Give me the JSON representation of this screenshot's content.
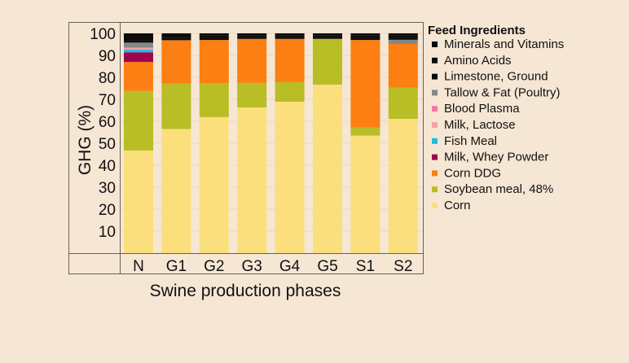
{
  "chart_data": {
    "type": "bar",
    "stacked": true,
    "title": "",
    "xlabel": "Swine production phases",
    "ylabel": "GHG (%)",
    "ylim": [
      0,
      100
    ],
    "yticks": [
      10,
      20,
      30,
      40,
      50,
      60,
      70,
      80,
      90,
      100
    ],
    "grid": true,
    "legend_title": "Feed Ingredients",
    "legend_position": "right",
    "categories": [
      "N",
      "G1",
      "G2",
      "G3",
      "G4",
      "G5",
      "S1",
      "S2"
    ],
    "series": [
      {
        "name": "Corn",
        "color": "#fbdf7c",
        "values": [
          46.7,
          56.5,
          61.9,
          66.3,
          68.9,
          76.7,
          53.5,
          61.1
        ]
      },
      {
        "name": "Soybean meal, 48%",
        "color": "#b9bd26",
        "values": [
          27.1,
          20.6,
          15.5,
          11.2,
          8.9,
          20.8,
          3.7,
          14.2
        ]
      },
      {
        "name": "Corn DDG",
        "color": "#fb7f12",
        "values": [
          13.2,
          19.8,
          19.6,
          20.0,
          19.7,
          0,
          39.8,
          19.9
        ]
      },
      {
        "name": "Milk, Whey Powder",
        "color": "#a0044f",
        "values": [
          4.4,
          0,
          0,
          0,
          0,
          0,
          0,
          0
        ]
      },
      {
        "name": "Fish Meal",
        "color": "#1ebfd8",
        "values": [
          1.2,
          0,
          0,
          0,
          0,
          0,
          0,
          0
        ]
      },
      {
        "name": "Milk, Lactose",
        "color": "#f7a3a8",
        "values": [
          0.6,
          0,
          0,
          0,
          0,
          0,
          0,
          0
        ]
      },
      {
        "name": "Blood Plasma",
        "color": "#ee79a5",
        "values": [
          0.4,
          0,
          0,
          0,
          0,
          0,
          0,
          0
        ]
      },
      {
        "name": "Tallow & Fat (Poultry)",
        "color": "#868686",
        "values": [
          2.2,
          0,
          0,
          0,
          0,
          0,
          0,
          1.9
        ]
      },
      {
        "name": "Limestone, Ground",
        "color": "#0a0a0a",
        "values": [
          1.2,
          1.0,
          1.0,
          0.8,
          0.8,
          0.8,
          1.0,
          1.0
        ]
      },
      {
        "name": "Amino Acids",
        "color": "#0a0a0a",
        "values": [
          1.5,
          1.0,
          1.0,
          0.9,
          0.9,
          0.9,
          1.0,
          0.9
        ]
      },
      {
        "name": "Minerals and Vitamins",
        "color": "#0a0a0a",
        "values": [
          1.5,
          1.1,
          1.0,
          0.8,
          0.8,
          0.8,
          1.0,
          1.0
        ]
      }
    ]
  }
}
